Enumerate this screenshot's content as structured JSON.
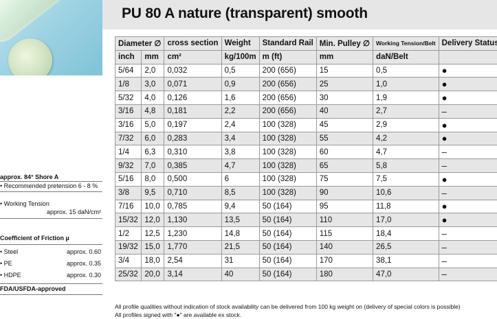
{
  "title": "PU 80 A nature (transparent) smooth",
  "header1": [
    "Diameter ∅",
    "cross section",
    "Weight",
    "Standard Rail",
    "Min. Pulley ∅",
    "Working Tension/Belt",
    "Delivery Status"
  ],
  "header2": [
    "inch",
    "mm",
    "cm²",
    "kg/100m",
    "m (ft)",
    "mm",
    "daN/Belt",
    ""
  ],
  "rows": [
    [
      "5/64",
      "2,0",
      "0,032",
      "0,5",
      "200 (656)",
      "15",
      "0,5",
      "●"
    ],
    [
      "1/8",
      "3,0",
      "0,071",
      "0,9",
      "200 (656)",
      "25",
      "1,0",
      "●"
    ],
    [
      "5/32",
      "4,0",
      "0,126",
      "1,6",
      "200 (656)",
      "30",
      "1,9",
      "●"
    ],
    [
      "3/16",
      "4,8",
      "0,181",
      "2,2",
      "200 (656)",
      "40",
      "2,7",
      "–"
    ],
    [
      "3/16",
      "5,0",
      "0,197",
      "2,4",
      "100 (328)",
      "45",
      "2,9",
      "●"
    ],
    [
      "7/32",
      "6,0",
      "0,283",
      "3,4",
      "100 (328)",
      "55",
      "4,2",
      "●"
    ],
    [
      "1/4",
      "6,3",
      "0,310",
      "3,8",
      "100 (328)",
      "60",
      "4,7",
      "–"
    ],
    [
      "9/32",
      "7,0",
      "0,385",
      "4,7",
      "100 (328)",
      "65",
      "5,8",
      "–"
    ],
    [
      "5/16",
      "8,0",
      "0,500",
      "6",
      "100 (328)",
      "75",
      "7,5",
      "●"
    ],
    [
      "3/8",
      "9,5",
      "0,710",
      "8,5",
      "100 (328)",
      "90",
      "10,6",
      "–"
    ],
    [
      "7/16",
      "10,0",
      "0,785",
      "9,4",
      "50 (164)",
      "95",
      "11,8",
      "●"
    ],
    [
      "15/32",
      "12,0",
      "1,130",
      "13,5",
      "50 (164)",
      "110",
      "17,0",
      "●"
    ],
    [
      "1/2",
      "12,5",
      "1,230",
      "14,8",
      "50 (164)",
      "115",
      "18,4",
      "–"
    ],
    [
      "19/32",
      "15,0",
      "1,770",
      "21,5",
      "50 (164)",
      "140",
      "26,5",
      "–"
    ],
    [
      "3/4",
      "18,0",
      "2,54",
      "31",
      "50 (164)",
      "170",
      "38,1",
      "–"
    ],
    [
      "25/32",
      "20,0",
      "3,14",
      "40",
      "50 (164)",
      "180",
      "47,0",
      "–"
    ]
  ],
  "side": {
    "shore": "approx. 84° Shore A",
    "pretension": "• Recommended pretension 6 - 8 %",
    "tension_label": "• Working Tension",
    "tension_value": "approx. 15 daN/cm²",
    "friction_title": "Coefficient of Friction µ",
    "friction": [
      {
        "name": "• Steel",
        "value": "approx. 0.60"
      },
      {
        "name": "• PE",
        "value": "approx. 0.35"
      },
      {
        "name": "• HDPE",
        "value": "approx. 0.30"
      }
    ],
    "fda": "FDA/USFDA-approved"
  },
  "footer": [
    "All profile qualities without indication of stock availability can be delivered from 100 kg weight on (delivery of special colors is possible)",
    "All profiles signed with \"●\" are available ex stock."
  ]
}
